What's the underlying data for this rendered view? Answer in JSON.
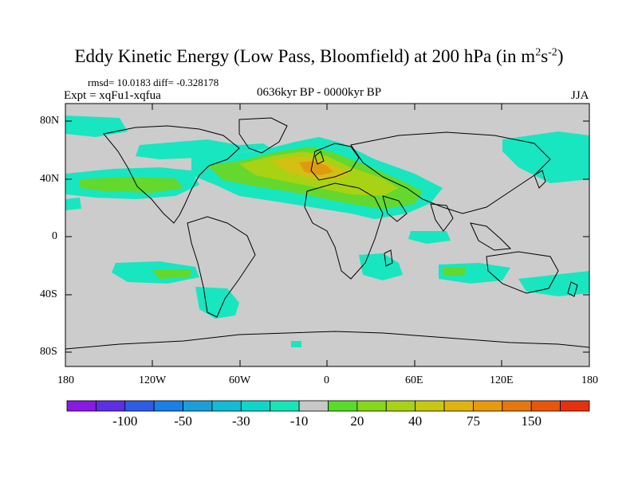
{
  "title": {
    "main": "Eddy Kinetic Energy (Low Pass, Bloomfield) at 200 hPa (in m",
    "sup1": "2",
    "mid": "s",
    "sup2": "-2",
    "end": ")"
  },
  "stats": "rmsd= 10.0183 diff= -0.328178",
  "expt": "Expt = xqFu1-xqfua",
  "period": "0636kyr BP - 0000kyr BP",
  "season": "JJA",
  "y_ticks": [
    "80N",
    "40N",
    "0",
    "40S",
    "80S"
  ],
  "x_ticks": [
    "180",
    "120W",
    "60W",
    "0",
    "60E",
    "120E",
    "180"
  ],
  "colorbar": {
    "labels": [
      "-100",
      "-50",
      "-30",
      "-10",
      "20",
      "40",
      "75",
      "150"
    ],
    "colors": [
      "#8a18e6",
      "#5d2ee6",
      "#2e5ce6",
      "#1a7fe6",
      "#1a9fdb",
      "#12bcd6",
      "#10d6c8",
      "#19e6b8",
      "#c8c8c8",
      "#58dc28",
      "#86d81a",
      "#a8d214",
      "#c8c812",
      "#e0b40c",
      "#e89a0c",
      "#e8780c",
      "#e8560c",
      "#e8300c"
    ]
  },
  "colors": {
    "ocean_land_neutral": "#cccccc",
    "cyan": "#18e6c0",
    "green": "#64d82c",
    "yellowgreen": "#a8d214",
    "yellow": "#d2c012",
    "orange": "#e09a10"
  }
}
